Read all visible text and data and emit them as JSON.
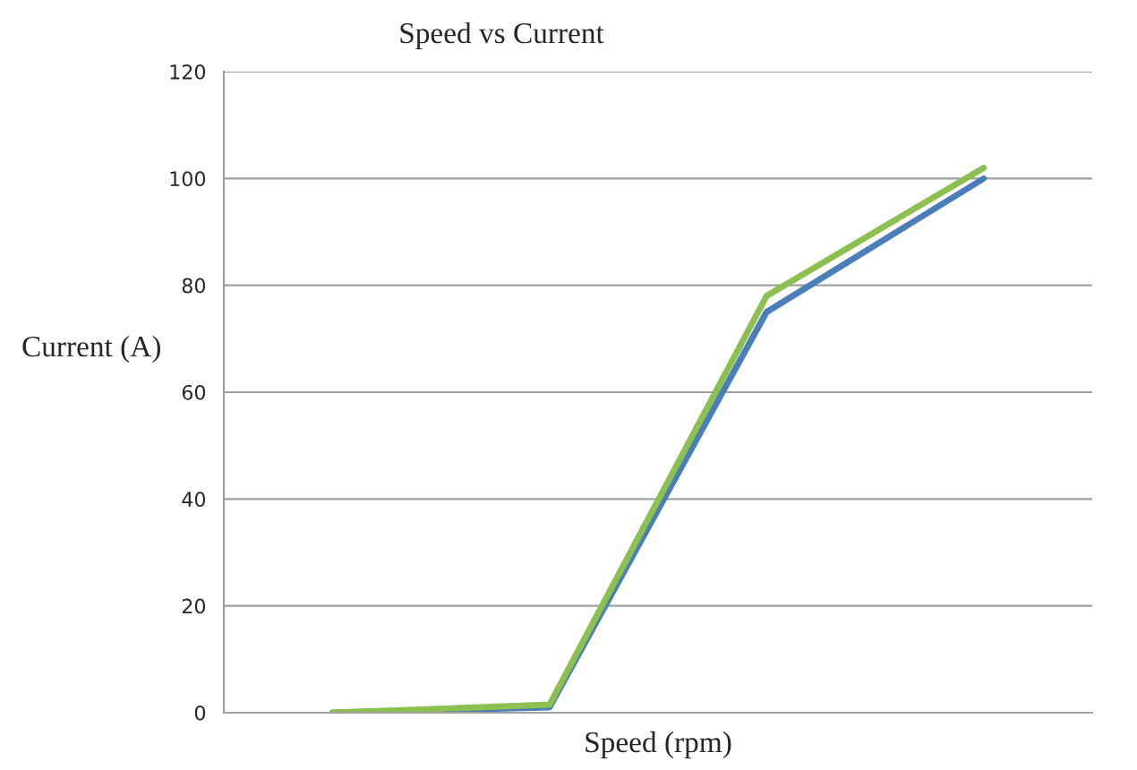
{
  "chart_data": {
    "type": "line",
    "title": "Speed vs Current",
    "xlabel": "Speed (rpm)",
    "ylabel": "Current (A)",
    "categories": [
      null,
      null,
      null,
      null
    ],
    "series": [
      {
        "color": "#4a7ebb",
        "values": [
          0,
          1,
          75,
          100
        ]
      },
      {
        "color": "#8cc152",
        "values": [
          0,
          1.5,
          78,
          102
        ]
      }
    ],
    "ylim": [
      0,
      120
    ],
    "yticks": [
      0,
      20,
      40,
      60,
      80,
      100,
      120
    ],
    "grid": "y",
    "legend": false,
    "marker": "none",
    "line_style": "solid"
  }
}
